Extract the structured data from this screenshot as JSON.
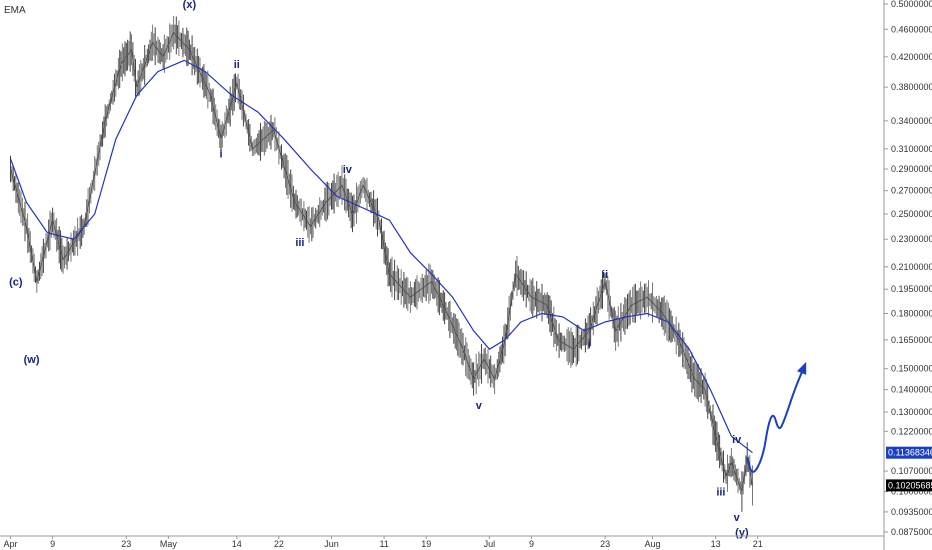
{
  "chart_data": {
    "type": "line",
    "indicator_label": "EMA",
    "x_tick_labels": [
      {
        "label": "Apr",
        "day": 0
      },
      {
        "label": "9",
        "day": 8
      },
      {
        "label": "23",
        "day": 22
      },
      {
        "label": "May",
        "day": 30
      },
      {
        "label": "14",
        "day": 43
      },
      {
        "label": "22",
        "day": 51
      },
      {
        "label": "Jun",
        "day": 61
      },
      {
        "label": "11",
        "day": 71
      },
      {
        "label": "19",
        "day": 79
      },
      {
        "label": "Jul",
        "day": 91
      },
      {
        "label": "9",
        "day": 99
      },
      {
        "label": "23",
        "day": 113
      },
      {
        "label": "Aug",
        "day": 122
      },
      {
        "label": "13",
        "day": 134
      },
      {
        "label": "21",
        "day": 142
      }
    ],
    "y_tick_labels": [
      "0.50000000",
      "0.46000000",
      "0.42000000",
      "0.38000000",
      "0.34000000",
      "0.31000000",
      "0.29000000",
      "0.27000000",
      "0.25000000",
      "0.23000000",
      "0.21000000",
      "0.19500000",
      "0.18000000",
      "0.16500000",
      "0.15000000",
      "0.14000000",
      "0.13000000",
      "0.12200000",
      "0.11368346",
      "0.10700000",
      "0.10205685",
      "0.10000000",
      "0.09350000",
      "0.08750000"
    ],
    "y_tick_values": [
      0.5,
      0.46,
      0.42,
      0.38,
      0.34,
      0.31,
      0.29,
      0.27,
      0.25,
      0.23,
      0.21,
      0.195,
      0.18,
      0.165,
      0.15,
      0.14,
      0.13,
      0.122,
      0.107,
      0.1,
      0.0935,
      0.0875
    ],
    "ylim": [
      0.0875,
      0.5
    ],
    "y_scale": "log",
    "price_tags": [
      {
        "label": "0.11368346",
        "value": 0.11368346,
        "color": "#1a3fc4"
      },
      {
        "label": "0.10205685",
        "value": 0.10205685,
        "color": "#000000"
      }
    ],
    "price_series": [
      {
        "day": 0,
        "value": 0.29
      },
      {
        "day": 3,
        "value": 0.24
      },
      {
        "day": 5,
        "value": 0.2
      },
      {
        "day": 8,
        "value": 0.245
      },
      {
        "day": 10,
        "value": 0.215
      },
      {
        "day": 14,
        "value": 0.24
      },
      {
        "day": 18,
        "value": 0.34
      },
      {
        "day": 21,
        "value": 0.41
      },
      {
        "day": 23,
        "value": 0.43
      },
      {
        "day": 24,
        "value": 0.38
      },
      {
        "day": 27,
        "value": 0.44
      },
      {
        "day": 29,
        "value": 0.42
      },
      {
        "day": 31,
        "value": 0.455
      },
      {
        "day": 34,
        "value": 0.43
      },
      {
        "day": 38,
        "value": 0.37
      },
      {
        "day": 40,
        "value": 0.32
      },
      {
        "day": 43,
        "value": 0.385
      },
      {
        "day": 46,
        "value": 0.31
      },
      {
        "day": 50,
        "value": 0.33
      },
      {
        "day": 54,
        "value": 0.26
      },
      {
        "day": 57,
        "value": 0.24
      },
      {
        "day": 60,
        "value": 0.26
      },
      {
        "day": 63,
        "value": 0.275
      },
      {
        "day": 65,
        "value": 0.25
      },
      {
        "day": 67,
        "value": 0.275
      },
      {
        "day": 70,
        "value": 0.245
      },
      {
        "day": 72,
        "value": 0.205
      },
      {
        "day": 76,
        "value": 0.19
      },
      {
        "day": 80,
        "value": 0.2
      },
      {
        "day": 83,
        "value": 0.18
      },
      {
        "day": 86,
        "value": 0.16
      },
      {
        "day": 88,
        "value": 0.145
      },
      {
        "day": 90,
        "value": 0.155
      },
      {
        "day": 92,
        "value": 0.145
      },
      {
        "day": 94,
        "value": 0.165
      },
      {
        "day": 96,
        "value": 0.205
      },
      {
        "day": 99,
        "value": 0.19
      },
      {
        "day": 102,
        "value": 0.185
      },
      {
        "day": 104,
        "value": 0.165
      },
      {
        "day": 107,
        "value": 0.16
      },
      {
        "day": 110,
        "value": 0.17
      },
      {
        "day": 113,
        "value": 0.2
      },
      {
        "day": 115,
        "value": 0.17
      },
      {
        "day": 118,
        "value": 0.185
      },
      {
        "day": 121,
        "value": 0.19
      },
      {
        "day": 124,
        "value": 0.18
      },
      {
        "day": 127,
        "value": 0.165
      },
      {
        "day": 130,
        "value": 0.145
      },
      {
        "day": 132,
        "value": 0.14
      },
      {
        "day": 134,
        "value": 0.12
      },
      {
        "day": 136,
        "value": 0.105
      },
      {
        "day": 137,
        "value": 0.11
      },
      {
        "day": 139,
        "value": 0.1
      },
      {
        "day": 140,
        "value": 0.112
      },
      {
        "day": 141,
        "value": 0.102
      }
    ],
    "ema_series": [
      {
        "day": 0,
        "value": 0.3
      },
      {
        "day": 3,
        "value": 0.26
      },
      {
        "day": 7,
        "value": 0.235
      },
      {
        "day": 12,
        "value": 0.23
      },
      {
        "day": 16,
        "value": 0.25
      },
      {
        "day": 20,
        "value": 0.32
      },
      {
        "day": 24,
        "value": 0.37
      },
      {
        "day": 28,
        "value": 0.4
      },
      {
        "day": 33,
        "value": 0.415
      },
      {
        "day": 37,
        "value": 0.4
      },
      {
        "day": 42,
        "value": 0.37
      },
      {
        "day": 47,
        "value": 0.35
      },
      {
        "day": 52,
        "value": 0.32
      },
      {
        "day": 57,
        "value": 0.29
      },
      {
        "day": 62,
        "value": 0.265
      },
      {
        "day": 67,
        "value": 0.255
      },
      {
        "day": 72,
        "value": 0.245
      },
      {
        "day": 76,
        "value": 0.22
      },
      {
        "day": 80,
        "value": 0.205
      },
      {
        "day": 84,
        "value": 0.19
      },
      {
        "day": 88,
        "value": 0.17
      },
      {
        "day": 91,
        "value": 0.16
      },
      {
        "day": 94,
        "value": 0.165
      },
      {
        "day": 97,
        "value": 0.175
      },
      {
        "day": 101,
        "value": 0.18
      },
      {
        "day": 105,
        "value": 0.178
      },
      {
        "day": 109,
        "value": 0.17
      },
      {
        "day": 113,
        "value": 0.175
      },
      {
        "day": 117,
        "value": 0.178
      },
      {
        "day": 121,
        "value": 0.18
      },
      {
        "day": 125,
        "value": 0.175
      },
      {
        "day": 129,
        "value": 0.16
      },
      {
        "day": 133,
        "value": 0.14
      },
      {
        "day": 137,
        "value": 0.12
      },
      {
        "day": 141,
        "value": 0.11368346
      }
    ],
    "projection": [
      {
        "day": 140,
        "value": 0.112
      },
      {
        "day": 141,
        "value": 0.105
      },
      {
        "day": 143,
        "value": 0.112
      },
      {
        "day": 144,
        "value": 0.125
      },
      {
        "day": 145,
        "value": 0.13
      },
      {
        "day": 146,
        "value": 0.122
      },
      {
        "day": 147,
        "value": 0.126
      },
      {
        "day": 149,
        "value": 0.14
      },
      {
        "day": 151,
        "value": 0.152
      }
    ],
    "wave_labels": [
      {
        "label": "(x)",
        "day": 34,
        "value": 0.5
      },
      {
        "label": "(c)",
        "day": 1,
        "value": 0.2
      },
      {
        "label": "(w)",
        "day": 4,
        "value": 0.155
      },
      {
        "label": "ii",
        "day": 43,
        "value": 0.41
      },
      {
        "label": "i",
        "day": 40,
        "value": 0.305
      },
      {
        "label": "iii",
        "day": 55,
        "value": 0.228
      },
      {
        "label": "iv",
        "day": 64,
        "value": 0.29
      },
      {
        "label": "v",
        "day": 89,
        "value": 0.133
      },
      {
        "label": "ii",
        "day": 113,
        "value": 0.205
      },
      {
        "label": "i",
        "day": 110,
        "value": 0.163
      },
      {
        "label": "iv",
        "day": 138,
        "value": 0.119
      },
      {
        "label": "iii",
        "day": 135,
        "value": 0.1
      },
      {
        "label": "v",
        "day": 138,
        "value": 0.092
      },
      {
        "label": "(y)",
        "day": 139,
        "value": 0.0875
      }
    ]
  }
}
